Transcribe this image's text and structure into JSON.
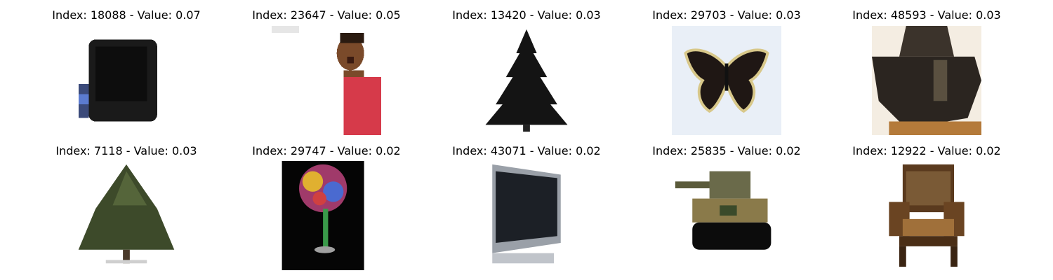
{
  "panels": [
    {
      "title": "Index: 18088 - Value: 0.07",
      "subject": "crt-television-icon"
    },
    {
      "title": "Index: 23647 - Value: 0.05",
      "subject": "surprised-person-icon"
    },
    {
      "title": "Index: 13420 - Value: 0.03",
      "subject": "black-pine-tree-icon"
    },
    {
      "title": "Index: 29703 - Value: 0.03",
      "subject": "butterfly-icon"
    },
    {
      "title": "Index: 48593 - Value: 0.03",
      "subject": "dark-tank-icon"
    },
    {
      "title": "Index: 7118 - Value: 0.03",
      "subject": "green-tree-icon"
    },
    {
      "title": "Index: 29747 - Value: 0.02",
      "subject": "colorful-glass-icon"
    },
    {
      "title": "Index: 43071 - Value: 0.02",
      "subject": "flat-tv-icon"
    },
    {
      "title": "Index: 25835 - Value: 0.02",
      "subject": "camo-tank-icon"
    },
    {
      "title": "Index: 12922 - Value: 0.02",
      "subject": "armchair-icon"
    }
  ]
}
